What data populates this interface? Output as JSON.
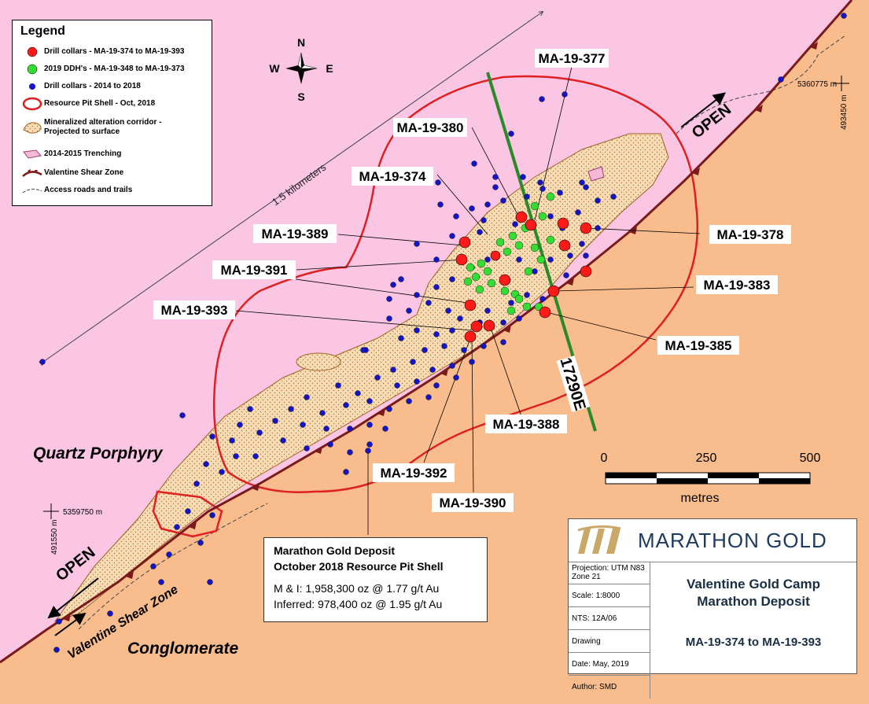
{
  "legend": {
    "title": "Legend",
    "items": [
      {
        "label": "Drill collars - MA-19-374 to MA-19-393",
        "symbol": "red-dot"
      },
      {
        "label": "2019 DDH's - MA-19-348 to MA-19-373",
        "symbol": "green-dot"
      },
      {
        "label": "Drill collars - 2014 to 2018",
        "symbol": "blue-dot"
      },
      {
        "label": "Resource Pit Shell - Oct, 2018",
        "symbol": "red-outline"
      },
      {
        "label": "Mineralized alteration corridor - Projected to surface",
        "symbol": "stipple-fill"
      },
      {
        "label": "2014-2015 Trenching",
        "symbol": "pink-fill"
      },
      {
        "label": "Valentine Shear Zone",
        "symbol": "shear-line"
      },
      {
        "label": "Access roads and trails",
        "symbol": "dashed-line"
      }
    ]
  },
  "compass": {
    "n": "N",
    "s": "S",
    "e": "E",
    "w": "W"
  },
  "scale_label": "1.5 kilometers",
  "open_labels": {
    "ne": "OPEN",
    "sw": "OPEN"
  },
  "geology": {
    "quartz": "Quartz Porphyry",
    "conglomerate": "Conglomerate",
    "shear": "Valentine Shear Zone"
  },
  "coordinates": {
    "n1": "5360775 m",
    "e1": "493450 m",
    "n2": "5359750 m",
    "e2": "491550 m"
  },
  "section_line": "17290E",
  "hole_labels": [
    "MA-19-377",
    "MA-19-380",
    "MA-19-374",
    "MA-19-389",
    "MA-19-391",
    "MA-19-393",
    "MA-19-378",
    "MA-19-383",
    "MA-19-385",
    "MA-19-388",
    "MA-19-392",
    "MA-19-390"
  ],
  "scalebar": {
    "ticks": [
      "0",
      "250",
      "500"
    ],
    "unit": "metres"
  },
  "summary": {
    "title1": "Marathon Gold Deposit",
    "title2": "October 2018 Resource Pit Shell",
    "mi": "M & I:  1,958,300 oz @ 1.77 g/t Au",
    "inferred": "Inferred: 978,400 oz @ 1.95 g/t Au"
  },
  "titleblock": {
    "company": "MARATHON GOLD",
    "projection": "Projection: UTM N83 Zone 21",
    "scale": "Scale: 1:8000",
    "nts": "NTS: 12A/06",
    "drawing": "Drawing",
    "date": "Date: May, 2019",
    "author": "Author: SMD",
    "title_line1": "Valentine Gold Camp",
    "title_line2": "Marathon Deposit",
    "subtitle": "MA-19-374 to MA-19-393"
  },
  "colors": {
    "pink": "#fbc6e4",
    "orange": "#f9bc8d",
    "shell": "#e02020",
    "red": "#ff1a1a",
    "green": "#33dd33",
    "blue": "#1515c8",
    "corridor": "#f7dcb4"
  }
}
